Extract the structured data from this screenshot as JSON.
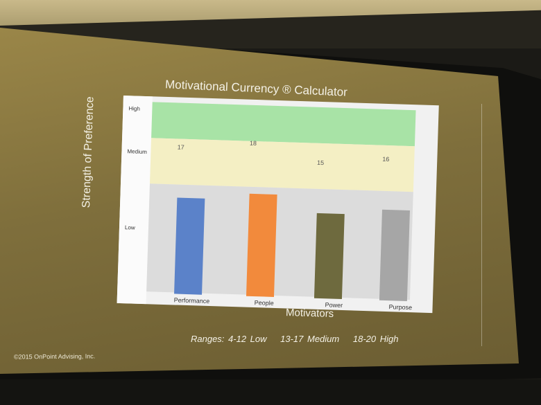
{
  "chart_data": {
    "type": "bar",
    "title": "Motivational Currency ® Calculator",
    "ylabel": "Strength of Preference",
    "xlabel": "Motivators",
    "categories": [
      "Performance",
      "People",
      "Power",
      "Purpose"
    ],
    "values": [
      17,
      18,
      15,
      16
    ],
    "y_ticks": [
      "High",
      "Medium",
      "Low"
    ],
    "bar_colors": [
      "#5b82c9",
      "#f28a3c",
      "#6e6a3e",
      "#a6a6a6"
    ],
    "band_colors": {
      "high": "#a8e3a6",
      "medium": "#f4efc4",
      "low": "#dcdcdc"
    }
  },
  "ranges": {
    "low": "Ranges: 4-12 Low",
    "medium": "13-17 Medium",
    "high": "18-20 High"
  },
  "copyright": "©2015 OnPoint Advising, Inc."
}
